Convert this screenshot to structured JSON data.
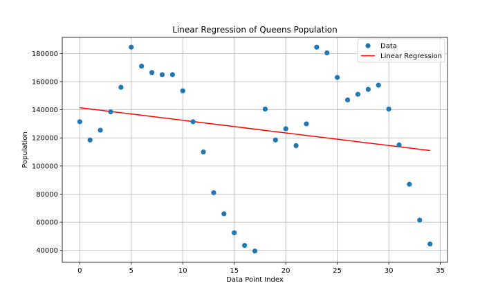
{
  "chart_data": {
    "type": "scatter",
    "title": "Linear Regression of Queens Population",
    "xlabel": "Data Point Index",
    "ylabel": "Population",
    "xlim": [
      -1.7,
      35.7
    ],
    "ylim": [
      31500,
      191500
    ],
    "xticks": [
      0,
      5,
      10,
      15,
      20,
      25,
      30,
      35
    ],
    "yticks": [
      40000,
      60000,
      80000,
      100000,
      120000,
      140000,
      160000,
      180000
    ],
    "grid": true,
    "legend_position": "top-right",
    "series": [
      {
        "name": "Data",
        "kind": "scatter",
        "color": "#1f77b4",
        "x": [
          0,
          1,
          2,
          3,
          4,
          5,
          6,
          7,
          8,
          9,
          10,
          11,
          12,
          13,
          14,
          15,
          16,
          17,
          18,
          19,
          20,
          21,
          22,
          23,
          24,
          25,
          26,
          27,
          28,
          29,
          30,
          31,
          32,
          33,
          34
        ],
        "y": [
          131500,
          118500,
          125500,
          138500,
          156000,
          184500,
          171000,
          166500,
          165000,
          165000,
          153500,
          131500,
          110000,
          81000,
          66000,
          52500,
          43500,
          39500,
          140500,
          118500,
          126500,
          114500,
          130000,
          184500,
          180500,
          163000,
          147000,
          151000,
          154500,
          157500,
          140500,
          115000,
          87000,
          61500,
          44500
        ]
      },
      {
        "name": "Linear Regression",
        "kind": "line",
        "color": "#ff0000",
        "x": [
          0,
          34
        ],
        "y": [
          141500,
          111000
        ]
      }
    ]
  }
}
